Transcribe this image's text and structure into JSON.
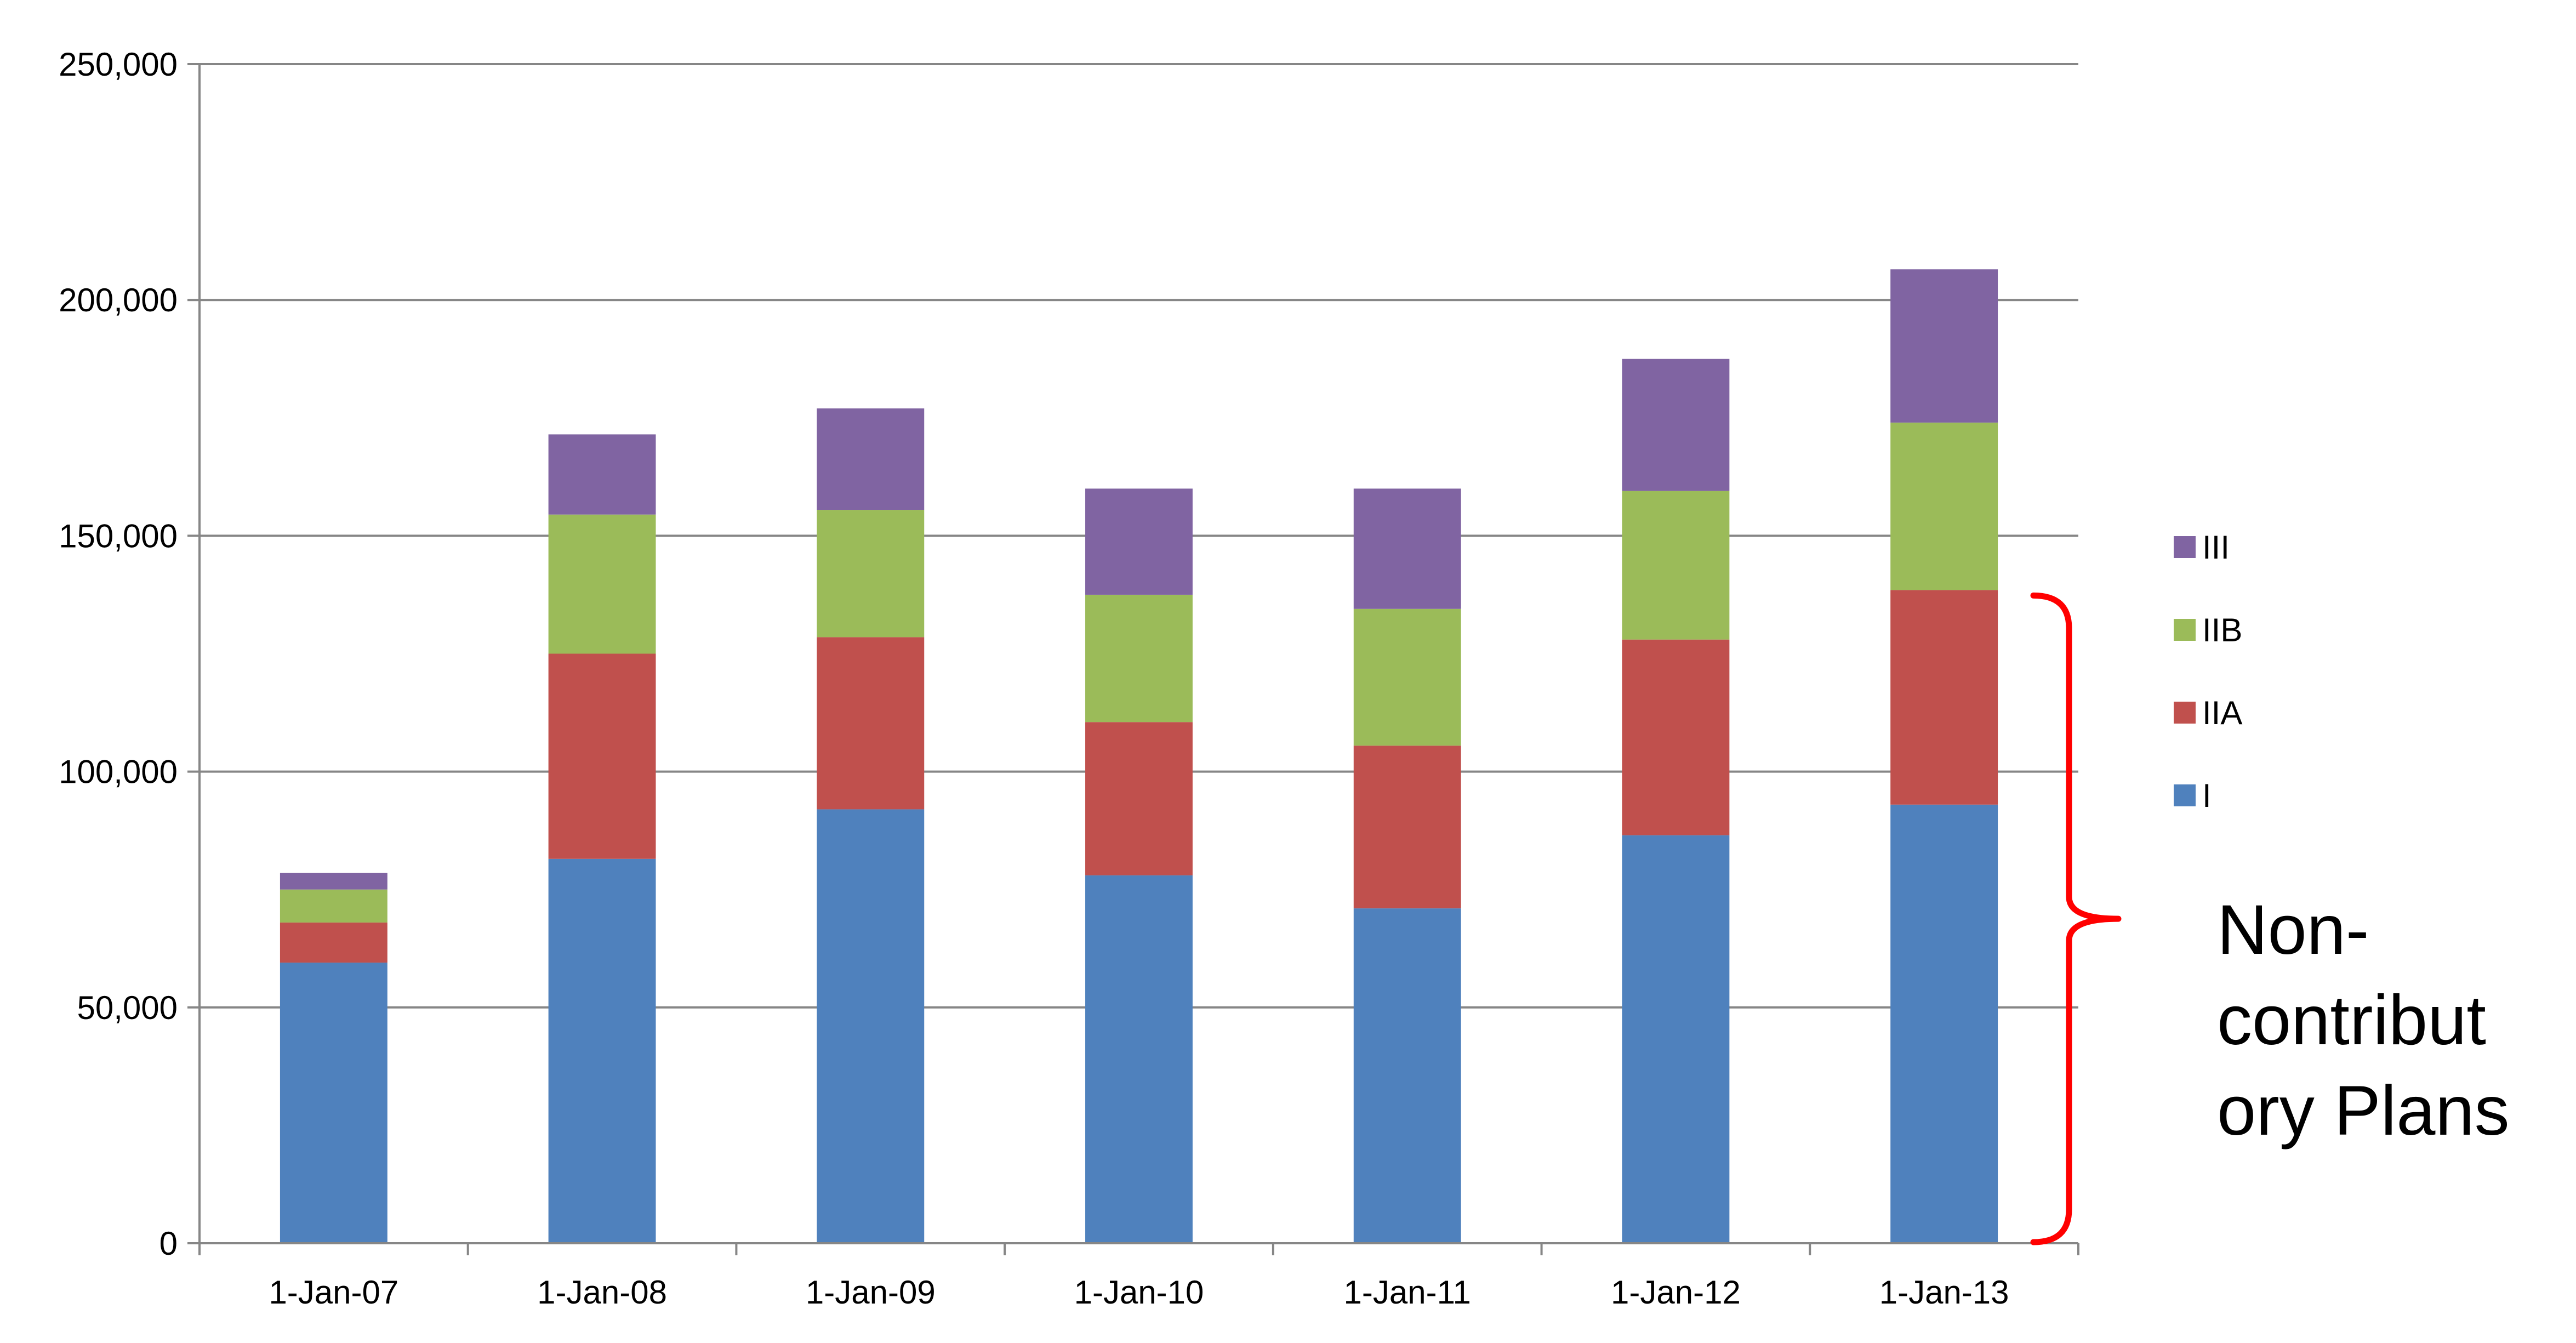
{
  "chart_data": {
    "type": "bar",
    "stacked": true,
    "title": "",
    "xlabel": "",
    "ylabel": "",
    "categories": [
      "1-Jan-07",
      "1-Jan-08",
      "1-Jan-09",
      "1-Jan-10",
      "1-Jan-11",
      "1-Jan-12",
      "1-Jan-13"
    ],
    "ylim": [
      0,
      250000
    ],
    "yticks": [
      0,
      50000,
      100000,
      150000,
      200000,
      250000
    ],
    "ytick_labels": [
      "0",
      "50,000",
      "100,000",
      "150,000",
      "200,000",
      "250,000"
    ],
    "grid": true,
    "legend_position": "right",
    "series": [
      {
        "name": "I",
        "color": "#4F81BD",
        "values": [
          59500,
          81500,
          92000,
          78000,
          71000,
          86500,
          93000
        ]
      },
      {
        "name": "IIA",
        "color": "#C0504D",
        "values": [
          8500,
          43500,
          36500,
          32500,
          34500,
          41500,
          45500
        ]
      },
      {
        "name": "IIB",
        "color": "#9BBB59",
        "values": [
          7000,
          29500,
          27000,
          27000,
          29000,
          31500,
          35500
        ]
      },
      {
        "name": "III",
        "color": "#8064A2",
        "values": [
          3500,
          17000,
          21500,
          22500,
          25500,
          28000,
          32500
        ]
      }
    ],
    "annotation": {
      "lines": [
        "Non-",
        "contribut",
        "ory Plans"
      ],
      "color": "#FF0000",
      "spans_series": [
        "I",
        "IIA"
      ]
    }
  }
}
